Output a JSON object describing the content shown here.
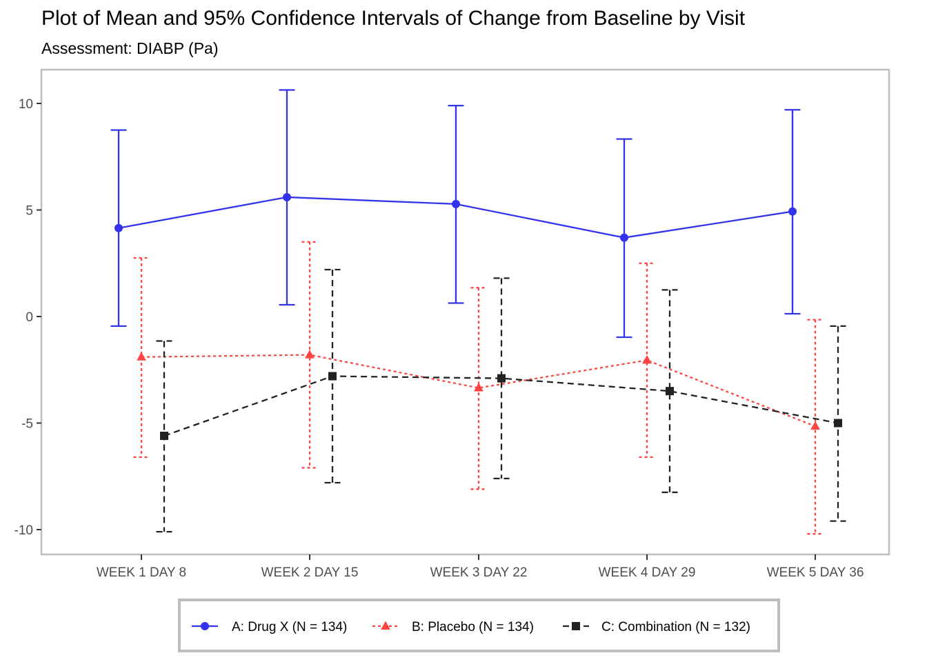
{
  "chart_data": {
    "type": "line",
    "title": "Plot of Mean and 95% Confidence Intervals of Change from Baseline by Visit",
    "subtitle": "Assessment: DIABP (Pa)",
    "xlabel": "",
    "ylabel": "",
    "categories": [
      "WEEK 1 DAY 8",
      "WEEK 2 DAY 15",
      "WEEK 3 DAY 22",
      "WEEK 4 DAY 29",
      "WEEK 5 DAY 36"
    ],
    "ylim": [
      -11.2,
      11.2
    ],
    "yticks": [
      -10,
      -5,
      0,
      5,
      10
    ],
    "grid": false,
    "legend_position": "bottom",
    "series": [
      {
        "name": "A: Drug X (N = 134)",
        "color": "#3333ee",
        "marker": "circle",
        "linestyle": "solid",
        "mean": [
          4.15,
          5.6,
          5.28,
          3.7,
          4.93
        ],
        "lower": [
          -0.45,
          0.55,
          0.63,
          -0.97,
          0.13
        ],
        "upper": [
          8.75,
          10.63,
          9.9,
          8.33,
          9.7
        ]
      },
      {
        "name": "B: Placebo (N = 134)",
        "color": "#ff4444",
        "marker": "triangle",
        "linestyle": "dotted",
        "mean": [
          -1.9,
          -1.8,
          -3.35,
          -2.05,
          -5.15
        ],
        "lower": [
          -6.6,
          -7.1,
          -8.1,
          -6.6,
          -10.2
        ],
        "upper": [
          2.75,
          3.5,
          1.35,
          2.5,
          -0.15
        ]
      },
      {
        "name": "C: Combination (N = 132)",
        "color": "#222222",
        "marker": "square",
        "linestyle": "dashed",
        "mean": [
          -5.6,
          -2.8,
          -2.9,
          -3.5,
          -5.0
        ],
        "lower": [
          -10.1,
          -7.8,
          -7.6,
          -8.25,
          -9.6
        ],
        "upper": [
          -1.15,
          2.2,
          1.8,
          1.25,
          -0.45
        ]
      }
    ]
  }
}
